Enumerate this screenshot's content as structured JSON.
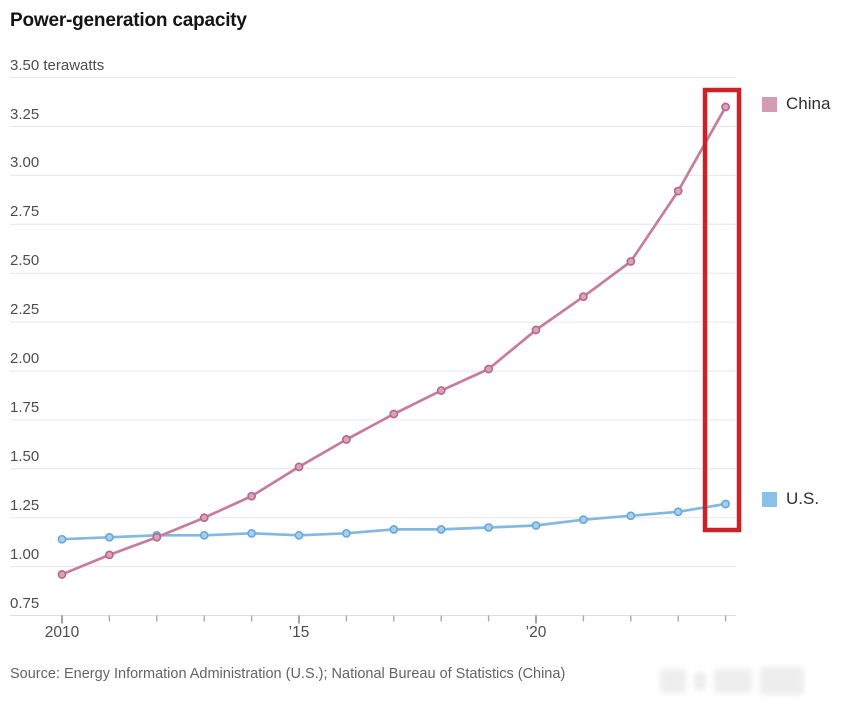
{
  "header": {
    "title": "Power-generation capacity"
  },
  "source": {
    "text": "Source: Energy Information Administration (U.S.); National Bureau of Statistics (China)"
  },
  "legend": {
    "china_label": "China",
    "us_label": "U.S."
  },
  "colors": {
    "background": "#ffffff",
    "gridline": "#e7e7e7",
    "axis_baseline": "#dedede",
    "tick_minor": "#aaaaaa",
    "tick_major": "#7d7d7d",
    "axis_text": "#4d4d4d",
    "title_text": "#141414",
    "source_text": "#646464",
    "highlight_red": "#cd2127"
  },
  "chart_data": {
    "type": "line",
    "title": "Power-generation capacity",
    "unit": "terawatts",
    "grid": "horizontal",
    "legend_position": "right",
    "ylim": [
      0.75,
      3.5
    ],
    "x": [
      2010,
      2011,
      2012,
      2013,
      2014,
      2015,
      2016,
      2017,
      2018,
      2019,
      2020,
      2021,
      2022,
      2023,
      2024
    ],
    "x_tick_years": [
      2010,
      2011,
      2012,
      2013,
      2014,
      2015,
      2016,
      2017,
      2018,
      2019,
      2020,
      2021,
      2022,
      2023,
      2024
    ],
    "x_axis_labels": [
      {
        "year": 2010,
        "text": "2010"
      },
      {
        "year": 2015,
        "text": "’15"
      },
      {
        "year": 2020,
        "text": "’20"
      }
    ],
    "y_ticks": [
      {
        "value": 3.5,
        "label": "3.50 terawatts"
      },
      {
        "value": 3.25,
        "label": "3.25"
      },
      {
        "value": 3.0,
        "label": "3.00"
      },
      {
        "value": 2.75,
        "label": "2.75"
      },
      {
        "value": 2.5,
        "label": "2.50"
      },
      {
        "value": 2.25,
        "label": "2.25"
      },
      {
        "value": 2.0,
        "label": "2.00"
      },
      {
        "value": 1.75,
        "label": "1.75"
      },
      {
        "value": 1.5,
        "label": "1.50"
      },
      {
        "value": 1.25,
        "label": "1.25"
      },
      {
        "value": 1.0,
        "label": "1.00"
      },
      {
        "value": 0.75,
        "label": "0.75"
      }
    ],
    "series": [
      {
        "name": "China",
        "line_color": "#c87c9c",
        "dot_fill": "#d9a3b8",
        "dot_stroke": "#b5688a",
        "swatch_color": "#d49cb0",
        "values": [
          0.96,
          1.06,
          1.15,
          1.25,
          1.36,
          1.51,
          1.65,
          1.78,
          1.9,
          2.01,
          2.21,
          2.38,
          2.56,
          2.92,
          3.35
        ]
      },
      {
        "name": "U.S.",
        "line_color": "#82b9e2",
        "dot_fill": "#a9cdec",
        "dot_stroke": "#68a8d8",
        "swatch_color": "#8cc0e8",
        "values": [
          1.14,
          1.15,
          1.16,
          1.16,
          1.17,
          1.16,
          1.17,
          1.19,
          1.19,
          1.2,
          1.21,
          1.24,
          1.26,
          1.28,
          1.32
        ]
      }
    ],
    "highlight_box": {
      "color": "#cd2127",
      "year": 2024
    }
  }
}
